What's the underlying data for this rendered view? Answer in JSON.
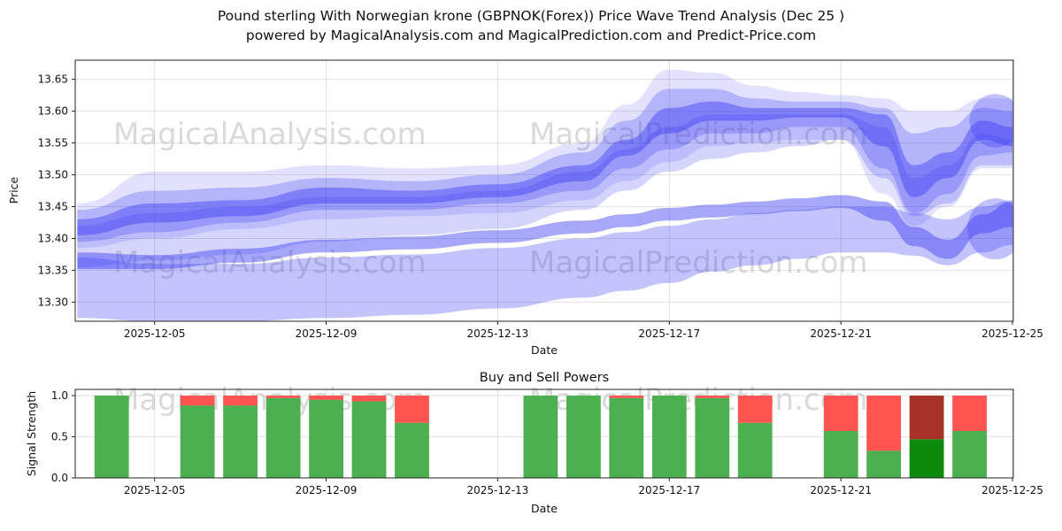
{
  "title": {
    "line1": "Pound sterling With Norwegian krone (GBPNOK(Forex)) Price Wave Trend Analysis (Dec 25 )",
    "line2": "powered by MagicalAnalysis.com and MagicalPrediction.com and Predict-Price.com"
  },
  "watermarks": {
    "analysis": "MagicalAnalysis.com",
    "prediction": "MagicalPrediction.com"
  },
  "colors": {
    "band": "#3d3df5",
    "grid": "#e2e2e2",
    "axis": "#262626",
    "green": "#4caf50",
    "red": "#ff5550",
    "dark_green": "#0c8a0c",
    "dark_red": "#a93226",
    "watermark": "#bdbdbd"
  },
  "chart_data": [
    {
      "type": "area",
      "title": "",
      "xlabel": "Date",
      "ylabel": "Price",
      "x_tick_labels": [
        "2025-12-05",
        "2025-12-09",
        "2025-12-13",
        "2025-12-17",
        "2025-12-21",
        "2025-12-25"
      ],
      "x_tick_days": [
        5,
        9,
        13,
        17,
        21,
        25
      ],
      "y_ticks": [
        13.3,
        13.35,
        13.4,
        13.45,
        13.5,
        13.55,
        13.6,
        13.65
      ],
      "ylim": [
        13.27,
        13.68
      ],
      "xlim_days": [
        3.15,
        25.02
      ],
      "grid": true,
      "legend": "none",
      "x_days": [
        3.2,
        5,
        7,
        9,
        11,
        13,
        15,
        16,
        17,
        18,
        19,
        20,
        21,
        22,
        22.7,
        23.5,
        24.3,
        25
      ],
      "bands": [
        {
          "name": "outer-envelope",
          "alpha": 0.15,
          "hi": [
            13.455,
            13.505,
            13.505,
            13.515,
            13.51,
            13.515,
            13.55,
            13.61,
            13.665,
            13.66,
            13.64,
            13.63,
            13.625,
            13.62,
            13.6,
            13.6,
            13.62,
            13.62
          ],
          "lo": [
            13.385,
            13.4,
            13.415,
            13.43,
            13.435,
            13.44,
            13.46,
            13.49,
            13.52,
            13.545,
            13.55,
            13.555,
            13.555,
            13.47,
            13.42,
            13.45,
            13.51,
            13.51
          ]
        },
        {
          "name": "upper-mid",
          "alpha": 0.28,
          "hi": [
            13.445,
            13.475,
            13.48,
            13.495,
            13.49,
            13.5,
            13.535,
            13.585,
            13.635,
            13.635,
            13.62,
            13.615,
            13.615,
            13.605,
            13.565,
            13.575,
            13.605,
            13.6
          ],
          "lo": [
            13.395,
            13.41,
            13.425,
            13.445,
            13.445,
            13.455,
            13.475,
            13.51,
            13.54,
            13.565,
            13.565,
            13.575,
            13.575,
            13.51,
            13.44,
            13.47,
            13.53,
            13.535
          ]
        },
        {
          "name": "upper-core",
          "alpha": 0.45,
          "hi": [
            13.43,
            13.455,
            13.46,
            13.48,
            13.475,
            13.485,
            13.515,
            13.555,
            13.605,
            13.615,
            13.605,
            13.605,
            13.605,
            13.595,
            13.515,
            13.535,
            13.585,
            13.575
          ],
          "lo": [
            13.405,
            13.425,
            13.435,
            13.455,
            13.455,
            13.465,
            13.49,
            13.53,
            13.565,
            13.585,
            13.585,
            13.59,
            13.59,
            13.545,
            13.465,
            13.495,
            13.555,
            13.545
          ]
        },
        {
          "name": "joining-band",
          "alpha": 0.22,
          "hi": [
            13.42,
            13.44,
            13.45,
            13.465,
            13.465,
            13.475,
            13.505,
            13.54,
            13.575,
            13.595,
            13.595,
            13.595,
            13.595,
            13.575,
            13.495,
            13.515,
            13.565,
            13.555
          ],
          "lo": [
            13.355,
            13.365,
            13.375,
            13.395,
            13.405,
            13.415,
            13.445,
            13.475,
            13.505,
            13.525,
            13.535,
            13.545,
            13.555,
            13.495,
            13.435,
            13.455,
            13.515,
            13.515
          ]
        },
        {
          "name": "lower-mid-core",
          "alpha": 0.45,
          "hi": [
            13.378,
            13.374,
            13.384,
            13.398,
            13.403,
            13.413,
            13.428,
            13.438,
            13.448,
            13.453,
            13.458,
            13.463,
            13.468,
            13.458,
            13.418,
            13.398,
            13.438,
            13.458
          ],
          "lo": [
            13.352,
            13.352,
            13.362,
            13.378,
            13.383,
            13.393,
            13.408,
            13.418,
            13.428,
            13.433,
            13.438,
            13.443,
            13.448,
            13.428,
            13.388,
            13.368,
            13.408,
            13.418
          ]
        },
        {
          "name": "lower-broad",
          "alpha": 0.3,
          "hi": [
            13.37,
            13.36,
            13.36,
            13.37,
            13.375,
            13.385,
            13.4,
            13.41,
            13.42,
            13.43,
            13.44,
            13.445,
            13.45,
            13.45,
            13.44,
            13.43,
            13.45,
            13.46
          ],
          "lo": [
            13.275,
            13.27,
            13.27,
            13.275,
            13.28,
            13.29,
            13.307,
            13.318,
            13.33,
            13.348,
            13.358,
            13.368,
            13.378,
            13.378,
            13.373,
            13.358,
            13.378,
            13.39
          ]
        }
      ],
      "blobs": [
        {
          "day": 24.6,
          "price": 13.415,
          "rx_days": 0.65,
          "ry": 0.048,
          "alpha": 0.32
        },
        {
          "day": 24.6,
          "price": 13.585,
          "rx_days": 0.6,
          "ry": 0.042,
          "alpha": 0.32
        }
      ]
    },
    {
      "type": "bar",
      "title": "Buy and Sell Powers",
      "xlabel": "Date",
      "ylabel": "Signal Strength",
      "x_tick_labels": [
        "2025-12-05",
        "2025-12-09",
        "2025-12-13",
        "2025-12-17",
        "2025-12-21",
        "2025-12-25"
      ],
      "x_tick_days": [
        5,
        9,
        13,
        17,
        21,
        25
      ],
      "y_ticks": [
        0.0,
        0.5,
        1.0
      ],
      "ylim": [
        0,
        1.075
      ],
      "xlim_days": [
        3.15,
        25.02
      ],
      "bar_width_days": 0.8,
      "series": [
        "Buy",
        "Sell"
      ],
      "bars": [
        {
          "date": "2025-12-04",
          "day": 4,
          "buy": 1.0,
          "sell": 0.0,
          "dark": false
        },
        {
          "date": "2025-12-06",
          "day": 6,
          "buy": 0.88,
          "sell": 0.12,
          "dark": false
        },
        {
          "date": "2025-12-07",
          "day": 7,
          "buy": 0.88,
          "sell": 0.12,
          "dark": false
        },
        {
          "date": "2025-12-08",
          "day": 8,
          "buy": 0.97,
          "sell": 0.03,
          "dark": false
        },
        {
          "date": "2025-12-09",
          "day": 9,
          "buy": 0.95,
          "sell": 0.05,
          "dark": false
        },
        {
          "date": "2025-12-10",
          "day": 10,
          "buy": 0.93,
          "sell": 0.07,
          "dark": false
        },
        {
          "date": "2025-12-11",
          "day": 11,
          "buy": 0.67,
          "sell": 0.33,
          "dark": false
        },
        {
          "date": "2025-12-14",
          "day": 14,
          "buy": 1.0,
          "sell": 0.0,
          "dark": false
        },
        {
          "date": "2025-12-15",
          "day": 15,
          "buy": 1.0,
          "sell": 0.0,
          "dark": false
        },
        {
          "date": "2025-12-16",
          "day": 16,
          "buy": 0.97,
          "sell": 0.03,
          "dark": false
        },
        {
          "date": "2025-12-17",
          "day": 17,
          "buy": 1.0,
          "sell": 0.0,
          "dark": false
        },
        {
          "date": "2025-12-18",
          "day": 18,
          "buy": 0.97,
          "sell": 0.03,
          "dark": false
        },
        {
          "date": "2025-12-19",
          "day": 19,
          "buy": 0.67,
          "sell": 0.33,
          "dark": false
        },
        {
          "date": "2025-12-21",
          "day": 21,
          "buy": 0.57,
          "sell": 0.43,
          "dark": false
        },
        {
          "date": "2025-12-22",
          "day": 22,
          "buy": 0.33,
          "sell": 0.67,
          "dark": false
        },
        {
          "date": "2025-12-23",
          "day": 23,
          "buy": 0.47,
          "sell": 0.53,
          "dark": true
        },
        {
          "date": "2025-12-24",
          "day": 24,
          "buy": 0.57,
          "sell": 0.43,
          "dark": false
        }
      ]
    }
  ]
}
